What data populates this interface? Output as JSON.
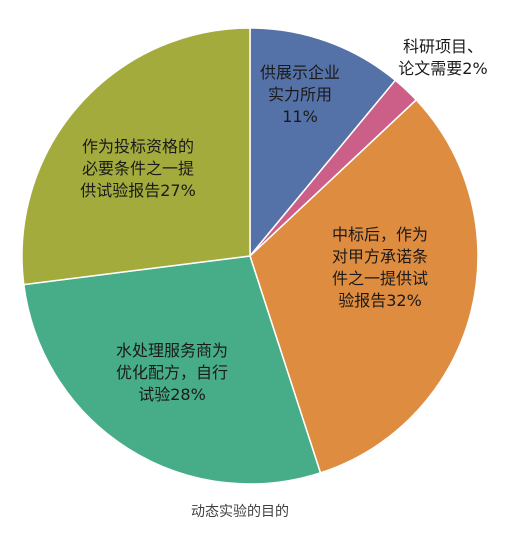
{
  "chart_data": {
    "type": "pie",
    "title": "",
    "caption": "动态实验的目的",
    "slices": [
      {
        "label_lines": [
          "供展示企业",
          "实力所用",
          "11%"
        ],
        "value": 11,
        "color": "#5572a8"
      },
      {
        "label_lines": [
          "科研项目、",
          "论文需要2%"
        ],
        "value": 2,
        "color": "#cc5f87"
      },
      {
        "label_lines": [
          "中标后，作为",
          "对甲方承诺条",
          "件之一提供试",
          "验报告32%"
        ],
        "value": 32,
        "color": "#de8c3f"
      },
      {
        "label_lines": [
          "水处理服务商为",
          "优化配方，自行",
          "试验28%"
        ],
        "value": 28,
        "color": "#47ad88"
      },
      {
        "label_lines": [
          "作为投标资格的",
          "必要条件之一提",
          "供试验报告27%"
        ],
        "value": 27,
        "color": "#a3ab3d"
      }
    ],
    "start_angle_deg": 0,
    "direction": "clockwise",
    "legend": "none"
  }
}
